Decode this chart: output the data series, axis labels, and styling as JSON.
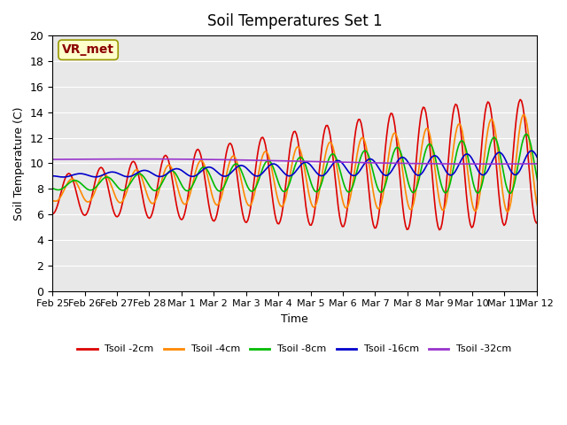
{
  "title": "Soil Temperatures Set 1",
  "xlabel": "Time",
  "ylabel": "Soil Temperature (C)",
  "ylim": [
    0,
    20
  ],
  "yticks": [
    0,
    2,
    4,
    6,
    8,
    10,
    12,
    14,
    16,
    18,
    20
  ],
  "bg_color": "#e8e8e8",
  "fig_color": "#ffffff",
  "annotation_text": "VR_met",
  "annotation_color": "#8b0000",
  "annotation_bg": "#ffffcc",
  "series_colors": [
    "#dd0000",
    "#ff8800",
    "#00bb00",
    "#0000cc",
    "#9933cc"
  ],
  "series_labels": [
    "Tsoil -2cm",
    "Tsoil -4cm",
    "Tsoil -8cm",
    "Tsoil -16cm",
    "Tsoil -32cm"
  ],
  "n_points": 408,
  "start_day": 56,
  "end_day": 73
}
